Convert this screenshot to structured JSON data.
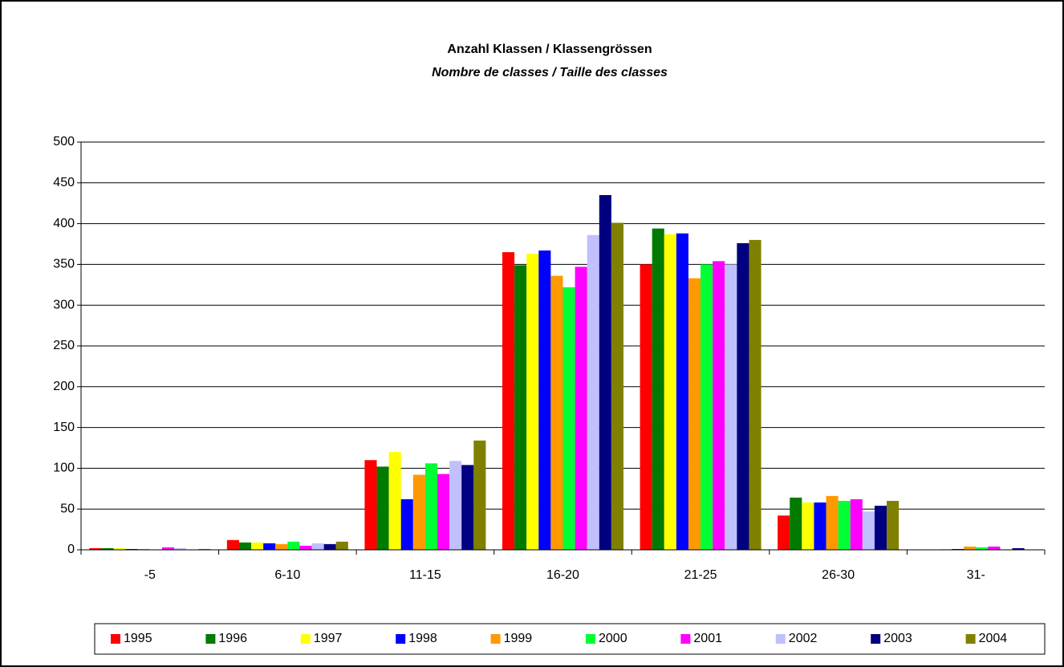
{
  "chart_data": {
    "type": "bar",
    "title": "Anzahl Klassen / Klassengrössen",
    "subtitle": "Nombre de classes / Taille des classes",
    "categories": [
      "-5",
      "6-10",
      "11-15",
      "16-20",
      "21-25",
      "26-30",
      "31-"
    ],
    "series": [
      {
        "name": "1995",
        "color": "#ff0000",
        "values": [
          2,
          12,
          110,
          365,
          350,
          42,
          0
        ]
      },
      {
        "name": "1996",
        "color": "#007a00",
        "values": [
          2,
          9,
          102,
          349,
          394,
          64,
          0
        ]
      },
      {
        "name": "1997",
        "color": "#ffff00",
        "values": [
          2,
          9,
          120,
          363,
          387,
          58,
          1
        ]
      },
      {
        "name": "1998",
        "color": "#0000ff",
        "values": [
          1,
          8,
          62,
          367,
          388,
          58,
          1
        ]
      },
      {
        "name": "1999",
        "color": "#ff9900",
        "values": [
          1,
          7,
          92,
          336,
          333,
          66,
          4
        ]
      },
      {
        "name": "2000",
        "color": "#00ff33",
        "values": [
          0,
          10,
          106,
          322,
          350,
          60,
          3
        ]
      },
      {
        "name": "2001",
        "color": "#ff00ff",
        "values": [
          3,
          5,
          93,
          347,
          354,
          62,
          4
        ]
      },
      {
        "name": "2002",
        "color": "#c0c0ff",
        "values": [
          2,
          8,
          109,
          386,
          350,
          47,
          0
        ]
      },
      {
        "name": "2003",
        "color": "#000080",
        "values": [
          0,
          7,
          104,
          435,
          376,
          54,
          2
        ]
      },
      {
        "name": "2004",
        "color": "#808000",
        "values": [
          1,
          10,
          134,
          401,
          380,
          60,
          0
        ]
      }
    ],
    "ylim": [
      0,
      500
    ],
    "yticks": [
      0,
      50,
      100,
      150,
      200,
      250,
      300,
      350,
      400,
      450,
      500
    ],
    "grid": true,
    "legend": "bottom"
  }
}
